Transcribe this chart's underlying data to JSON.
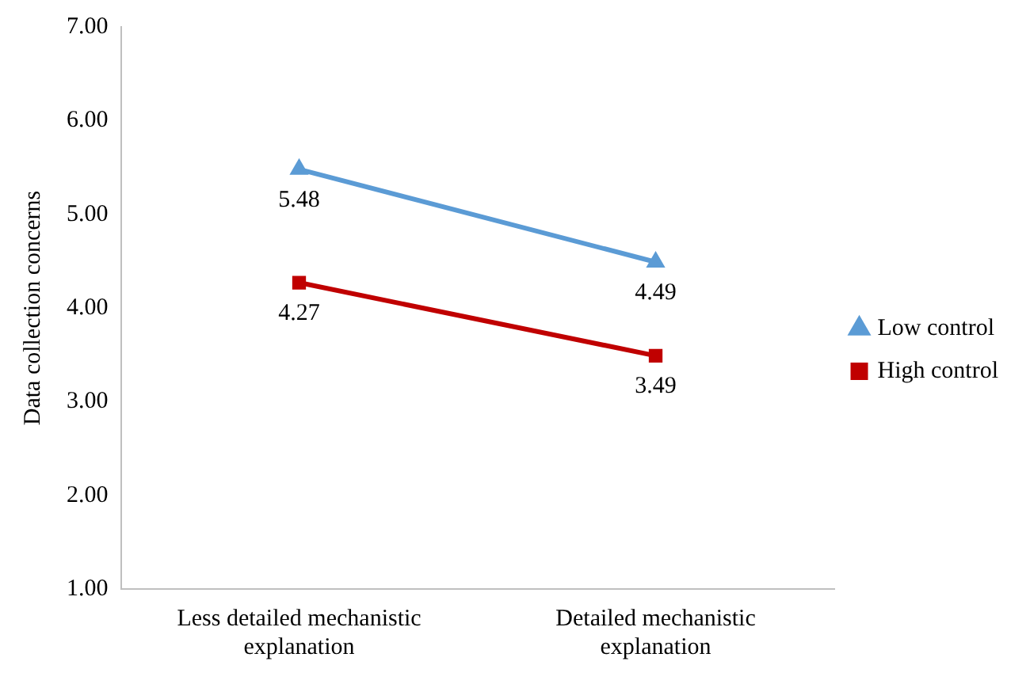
{
  "chart_data": {
    "type": "line",
    "ylabel": "Data collection concerns",
    "categories": [
      "Less detailed mechanistic explanation",
      "Detailed mechanistic explanation"
    ],
    "series": [
      {
        "name": "Low control",
        "color": "#5b9bd5",
        "marker": "triangle",
        "values": [
          5.48,
          4.49
        ]
      },
      {
        "name": "High control",
        "color": "#c00000",
        "marker": "square",
        "values": [
          4.27,
          3.49
        ]
      }
    ],
    "ylim": [
      1,
      7
    ],
    "yticks": [
      {
        "value": 1,
        "label": "1.00"
      },
      {
        "value": 2,
        "label": "2.00"
      },
      {
        "value": 3,
        "label": "3.00"
      },
      {
        "value": 4,
        "label": "4.00"
      },
      {
        "value": 5,
        "label": "5.00"
      },
      {
        "value": 6,
        "label": "6.00"
      },
      {
        "value": 7,
        "label": "7.00"
      }
    ],
    "grid": false,
    "legend": "right",
    "data_labels": true
  }
}
